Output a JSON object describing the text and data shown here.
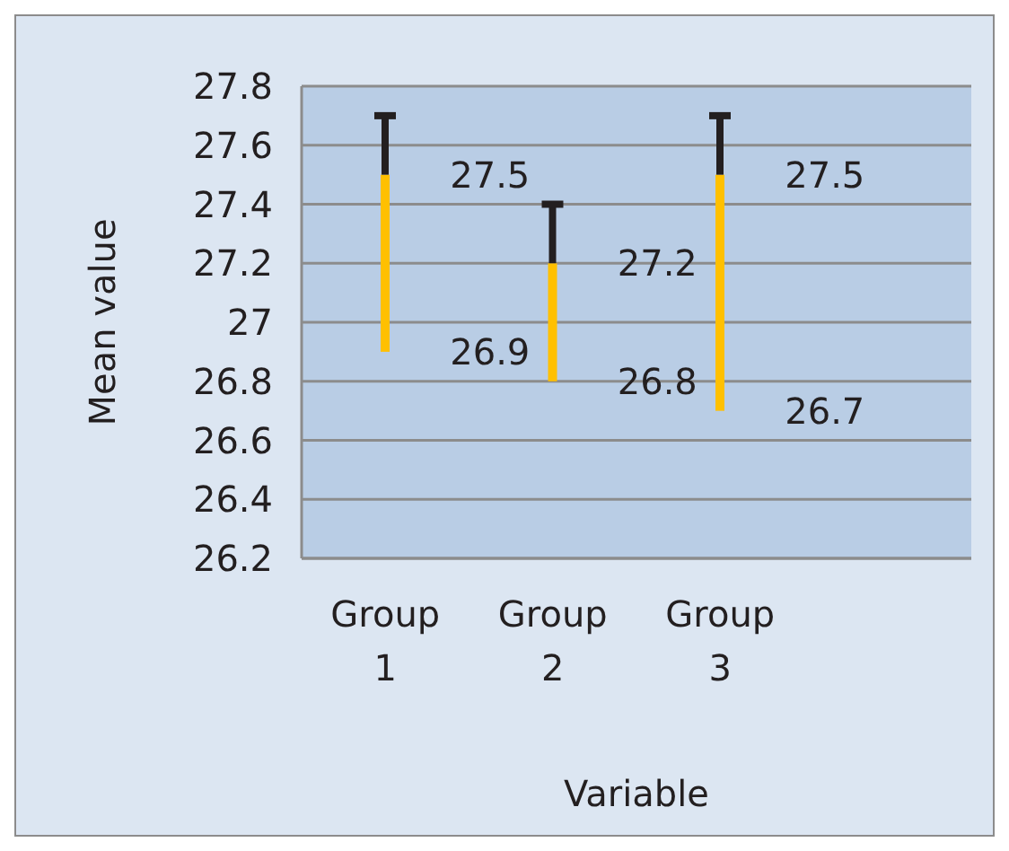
{
  "chart_data": {
    "type": "bar",
    "xlabel": "Variable",
    "ylabel": "Mean value",
    "categories": [
      "Group 1",
      "Group 2",
      "Group 3",
      null
    ],
    "base": [
      26.9,
      26.8,
      26.7,
      null
    ],
    "values": [
      0.6,
      0.4,
      0.8,
      null
    ],
    "errors": [
      [
        27.5,
        27.7
      ],
      [
        27.2,
        27.4
      ],
      [
        27.5,
        27.7
      ],
      null
    ],
    "color": "#ffc000",
    "ylim": [
      26.2,
      27.8
    ],
    "yticks": [
      26.2,
      26.4,
      26.6,
      26.8,
      27,
      27.2,
      27.4,
      27.6,
      27.8
    ],
    "grid": "y",
    "legend": false,
    "annotations": [
      {
        "text": "27.5",
        "x": "Group 1",
        "y": 27.5
      },
      {
        "text": "26.9",
        "x": "Group 1",
        "y": 26.9
      },
      {
        "text": "27.2",
        "x": "Group 2",
        "y": 27.2
      },
      {
        "text": "26.8",
        "x": "Group 2",
        "y": 26.8
      },
      {
        "text": "27.5",
        "x": "Group 3",
        "y": 27.5
      },
      {
        "text": "26.7",
        "x": "Group 3",
        "y": 26.7
      }
    ]
  }
}
